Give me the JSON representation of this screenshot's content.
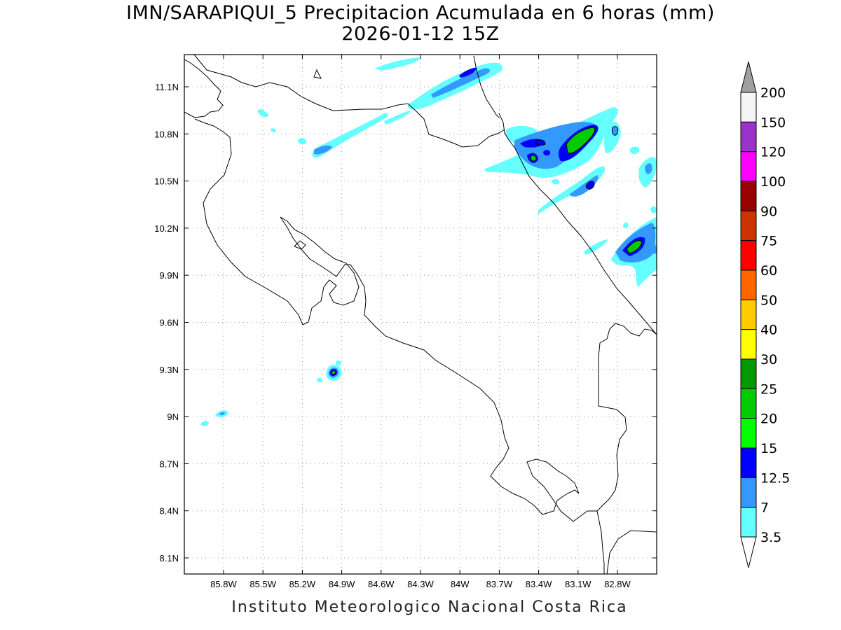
{
  "title": {
    "line1": "IMN/SARAPIQUI_5 Precipitacion Acumulada en 6 horas (mm)",
    "line2": "2026-01-12 15Z"
  },
  "footer": "Instituto Meteorologico Nacional Costa Rica",
  "map": {
    "lon_ticks": [
      "85.8W",
      "85.5W",
      "85.2W",
      "84.9W",
      "84.6W",
      "84.3W",
      "84W",
      "83.7W",
      "83.4W",
      "83.1W",
      "82.8W"
    ],
    "lat_ticks": [
      "11.1N",
      "10.8N",
      "10.5N",
      "10.2N",
      "9.9N",
      "9.6N",
      "9.3N",
      "9N",
      "8.7N",
      "8.4N",
      "8.1N"
    ]
  },
  "colorbar": {
    "labels": [
      "200",
      "150",
      "120",
      "100",
      "90",
      "75",
      "60",
      "50",
      "40",
      "30",
      "25",
      "20",
      "15",
      "12.5",
      "7",
      "3.5"
    ],
    "colors": [
      "#f5f5f5",
      "#9933cc",
      "#ff00ff",
      "#990000",
      "#cc3300",
      "#ff0000",
      "#ff6600",
      "#ffcc00",
      "#ffff00",
      "#009900",
      "#00cc00",
      "#00ff00",
      "#0000ff",
      "#3399ff",
      "#66ffff"
    ],
    "top_triangle_color": "#a0a0a0",
    "bottom_triangle_color": "#ffffff"
  }
}
